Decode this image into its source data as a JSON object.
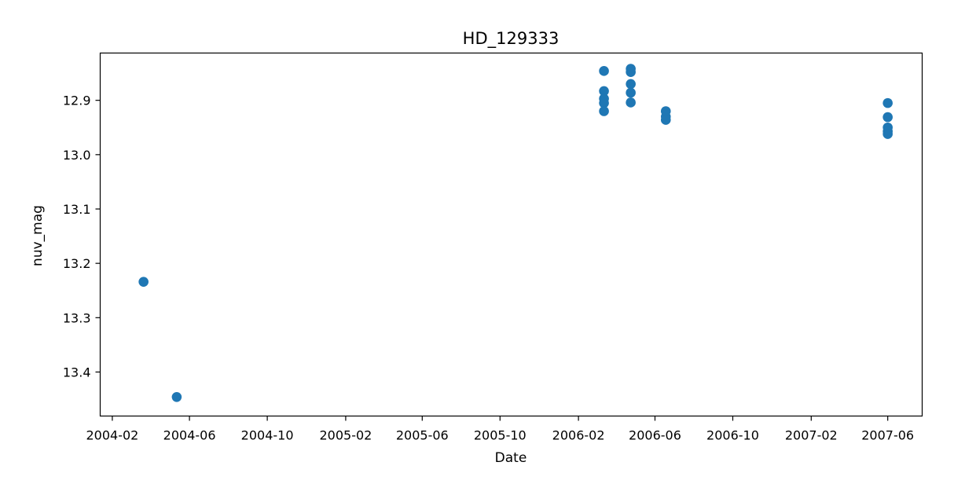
{
  "chart_data": {
    "type": "scatter",
    "title": "HD_129333",
    "xlabel": "Date",
    "ylabel": "nuv_mag",
    "y_inverted": true,
    "x_ticks": [
      "2004-02",
      "2004-06",
      "2004-10",
      "2005-02",
      "2005-06",
      "2005-10",
      "2006-02",
      "2006-06",
      "2006-10",
      "2007-02",
      "2007-06"
    ],
    "y_ticks": [
      "12.9",
      "13.0",
      "13.1",
      "13.2",
      "13.3",
      "13.4"
    ],
    "xlim": [
      "2004-01-13",
      "2007-07-25"
    ],
    "ylim": [
      12.813,
      13.481
    ],
    "grid": false,
    "marker_color": "#1f77b4",
    "series": [
      {
        "points": [
          {
            "x": "2004-03-21",
            "y": 13.234
          },
          {
            "x": "2004-05-12",
            "y": 13.446
          },
          {
            "x": "2006-03-13",
            "y": 12.846
          },
          {
            "x": "2006-03-13",
            "y": 12.883
          },
          {
            "x": "2006-03-13",
            "y": 12.897
          },
          {
            "x": "2006-03-13",
            "y": 12.905
          },
          {
            "x": "2006-03-13",
            "y": 12.92
          },
          {
            "x": "2006-04-24",
            "y": 12.842
          },
          {
            "x": "2006-04-24",
            "y": 12.848
          },
          {
            "x": "2006-04-24",
            "y": 12.87
          },
          {
            "x": "2006-04-24",
            "y": 12.886
          },
          {
            "x": "2006-04-24",
            "y": 12.904
          },
          {
            "x": "2006-06-18",
            "y": 12.92
          },
          {
            "x": "2006-06-18",
            "y": 12.93
          },
          {
            "x": "2006-06-18",
            "y": 12.936
          },
          {
            "x": "2007-06-01",
            "y": 12.905
          },
          {
            "x": "2007-06-01",
            "y": 12.931
          },
          {
            "x": "2007-06-01",
            "y": 12.95
          },
          {
            "x": "2007-06-01",
            "y": 12.957
          },
          {
            "x": "2007-06-01",
            "y": 12.962
          }
        ]
      }
    ]
  }
}
